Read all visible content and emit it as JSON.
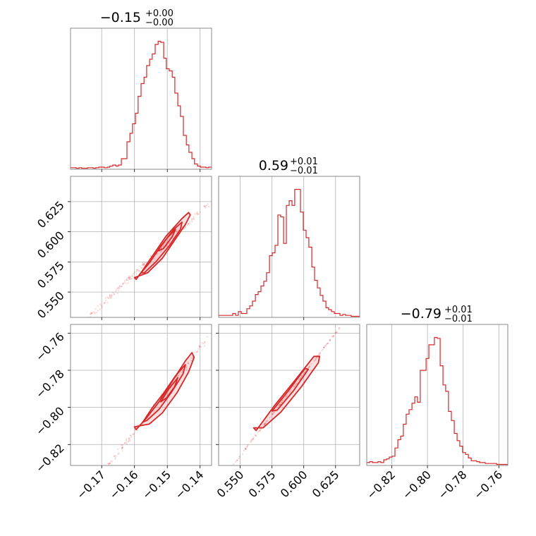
{
  "chart_data": {
    "type": "corner",
    "color": "#d62728",
    "grid": true,
    "parameters": [
      {
        "title": {
          "median": "−0.15",
          "plus": "+0.00",
          "minus": "−0.00"
        },
        "range": [
          -0.1795,
          -0.1365
        ],
        "ticks": [
          -0.17,
          -0.16,
          -0.15,
          -0.14
        ],
        "tick_labels": [
          "−0.17",
          "−0.16",
          "−0.15",
          "−0.14"
        ],
        "hist_x": [
          -0.1795,
          -0.1786,
          -0.1778,
          -0.1769,
          -0.1761,
          -0.1752,
          -0.1743,
          -0.1735,
          -0.1726,
          -0.1718,
          -0.1709,
          -0.17,
          -0.1692,
          -0.1683,
          -0.1675,
          -0.1666,
          -0.1657,
          -0.1649,
          -0.164,
          -0.1632,
          -0.1623,
          -0.1614,
          -0.1606,
          -0.1597,
          -0.1589,
          -0.158,
          -0.1571,
          -0.1563,
          -0.1554,
          -0.1546,
          -0.1537,
          -0.1528,
          -0.152,
          -0.1511,
          -0.1503,
          -0.1494,
          -0.1485,
          -0.1477,
          -0.1468,
          -0.146,
          -0.1451,
          -0.1442,
          -0.1434,
          -0.1425,
          -0.1417,
          -0.1408,
          -0.1399,
          -0.1391,
          -0.1382,
          -0.1374,
          -0.1365
        ],
        "hist_counts": [
          0.5,
          0.5,
          0,
          0.5,
          0,
          0,
          0.5,
          0.5,
          0,
          0.5,
          1,
          1,
          0.5,
          1,
          2,
          3,
          2,
          3,
          9,
          9,
          25,
          33,
          42,
          52,
          68,
          80,
          86,
          97,
          103,
          108,
          117,
          120,
          119,
          104,
          94,
          92,
          86,
          71,
          59,
          49,
          31,
          22,
          15,
          9,
          4,
          2,
          1,
          1,
          0.5,
          1,
          1
        ]
      },
      {
        "title": {
          "median": "0.59",
          "plus": "+0.01",
          "minus": "−0.01"
        },
        "range": [
          0.533,
          0.644
        ],
        "ticks": [
          0.55,
          0.575,
          0.6,
          0.625
        ],
        "tick_labels": [
          "0.550",
          "0.575",
          "0.600",
          "0.625"
        ],
        "hist_x": [
          0.533,
          0.5352,
          0.5374,
          0.5397,
          0.5419,
          0.5441,
          0.5463,
          0.5485,
          0.5508,
          0.553,
          0.5552,
          0.5574,
          0.5596,
          0.5619,
          0.5641,
          0.5663,
          0.5685,
          0.5707,
          0.573,
          0.5752,
          0.5774,
          0.5796,
          0.5818,
          0.5841,
          0.5863,
          0.5885,
          0.5907,
          0.5929,
          0.5952,
          0.5974,
          0.5996,
          0.6018,
          0.604,
          0.6063,
          0.6085,
          0.6107,
          0.6129,
          0.6151,
          0.6174,
          0.6196,
          0.6218,
          0.624,
          0.6262,
          0.6285,
          0.6307,
          0.6329,
          0.6351,
          0.6373,
          0.6396,
          0.6418,
          0.644
        ],
        "hist_counts": [
          1,
          1,
          1,
          1,
          1,
          3,
          1,
          5,
          3,
          3,
          8,
          11,
          16,
          23,
          26,
          32,
          37,
          46,
          64,
          67,
          75,
          107,
          105,
          77,
          117,
          122,
          117,
          134,
          134,
          110,
          91,
          83,
          73,
          52,
          38,
          30,
          22,
          16,
          9,
          7,
          5,
          3,
          3,
          1,
          2,
          1,
          1,
          0,
          0,
          0,
          0
        ]
      },
      {
        "title": {
          "median": "−0.79",
          "plus": "+0.01",
          "minus": "−0.01"
        },
        "range": [
          -0.834,
          -0.755
        ],
        "ticks": [
          -0.82,
          -0.8,
          -0.78,
          -0.76
        ],
        "tick_labels": [
          "−0.82",
          "−0.80",
          "−0.78",
          "−0.76"
        ],
        "hist_x": [
          -0.834,
          -0.8324,
          -0.8308,
          -0.8293,
          -0.8277,
          -0.8261,
          -0.8245,
          -0.8229,
          -0.8214,
          -0.8198,
          -0.8182,
          -0.8166,
          -0.815,
          -0.8135,
          -0.8119,
          -0.8103,
          -0.8087,
          -0.8071,
          -0.8056,
          -0.804,
          -0.8024,
          -0.8008,
          -0.7992,
          -0.7977,
          -0.7961,
          -0.7945,
          -0.7929,
          -0.7913,
          -0.7898,
          -0.7882,
          -0.7866,
          -0.785,
          -0.7834,
          -0.7819,
          -0.7803,
          -0.7787,
          -0.7771,
          -0.7755,
          -0.774,
          -0.7724,
          -0.7708,
          -0.7692,
          -0.7676,
          -0.7661,
          -0.7645,
          -0.7629,
          -0.7613,
          -0.7597,
          -0.7582,
          -0.7566,
          -0.755
        ],
        "hist_counts": [
          2,
          3,
          2,
          2,
          3,
          2,
          5,
          6,
          8,
          9,
          18,
          27,
          31,
          44,
          55,
          60,
          67,
          74,
          68,
          103,
          103,
          116,
          131,
          131,
          139,
          138,
          108,
          87,
          80,
          58,
          48,
          34,
          26,
          20,
          13,
          11,
          7,
          4,
          4,
          3,
          2,
          2,
          1,
          1,
          1,
          1,
          0,
          0,
          0,
          0,
          0
        ]
      }
    ],
    "scatter_pairs": [
      {
        "row": 1,
        "col": 0,
        "x_param": 0,
        "y_param": 1,
        "ylim": [
          0.529,
          0.646
        ],
        "y_ticks": [
          0.55,
          0.575,
          0.6,
          0.625
        ],
        "y_tick_labels": [
          "0.550",
          "0.575",
          "0.600",
          "0.625"
        ]
      },
      {
        "row": 2,
        "col": 0,
        "x_param": 0,
        "y_param": 2,
        "ylim": [
          -0.8313,
          -0.7553
        ],
        "y_ticks": [
          -0.82,
          -0.8,
          -0.78,
          -0.76
        ],
        "y_tick_labels": [
          "−0.82",
          "−0.80",
          "−0.78",
          "−0.76"
        ]
      },
      {
        "row": 2,
        "col": 1,
        "x_param": 1,
        "y_param": 2,
        "ylim": [
          -0.8313,
          -0.7553
        ],
        "y_ticks": [
          -0.82,
          -0.8,
          -0.78,
          -0.76
        ],
        "y_tick_labels": [
          "−0.82",
          "−0.80",
          "−0.78",
          "−0.76"
        ]
      }
    ],
    "relations": {
      "p1_from_p0": {
        "slope": 2.56,
        "intercept": 0.9748
      },
      "p2_from_p0": {
        "slope": 2.26,
        "intercept": -0.4515
      },
      "p2_from_p1": {
        "slope": 0.88,
        "intercept": -1.31
      }
    },
    "contours": [
      {
        "name": "p0_p1_outer",
        "poly": [
          [
            -0.16,
            0.562
          ],
          [
            -0.1595,
            0.5605
          ],
          [
            -0.1575,
            0.568
          ],
          [
            -0.1545,
            0.58
          ],
          [
            -0.1505,
            0.596
          ],
          [
            -0.1455,
            0.611
          ],
          [
            -0.1435,
            0.616
          ],
          [
            -0.143,
            0.614
          ],
          [
            -0.1445,
            0.606
          ],
          [
            -0.1475,
            0.594
          ],
          [
            -0.1515,
            0.578
          ],
          [
            -0.156,
            0.566
          ]
        ]
      },
      {
        "name": "p0_p1_mid",
        "poly": [
          [
            -0.158,
            0.566
          ],
          [
            -0.1555,
            0.574
          ],
          [
            -0.152,
            0.588
          ],
          [
            -0.148,
            0.602
          ],
          [
            -0.1455,
            0.608
          ],
          [
            -0.146,
            0.602
          ],
          [
            -0.1495,
            0.588
          ],
          [
            -0.1535,
            0.575
          ],
          [
            -0.157,
            0.566
          ]
        ]
      },
      {
        "name": "p0_p1_inner",
        "poly": [
          [
            -0.153,
            0.584
          ],
          [
            -0.15,
            0.595
          ],
          [
            -0.1475,
            0.602
          ],
          [
            -0.1485,
            0.596
          ],
          [
            -0.1512,
            0.586
          ]
        ]
      },
      {
        "name": "p0_p2_outer",
        "poly": [
          [
            -0.16,
            -0.8105
          ],
          [
            -0.1595,
            -0.812
          ],
          [
            -0.1565,
            -0.806
          ],
          [
            -0.1525,
            -0.797
          ],
          [
            -0.1485,
            -0.786
          ],
          [
            -0.1445,
            -0.775
          ],
          [
            -0.1425,
            -0.7705
          ],
          [
            -0.1418,
            -0.773
          ],
          [
            -0.1435,
            -0.781
          ],
          [
            -0.147,
            -0.792
          ],
          [
            -0.1515,
            -0.803
          ],
          [
            -0.1555,
            -0.809
          ]
        ]
      },
      {
        "name": "p0_p2_mid",
        "poly": [
          [
            -0.1575,
            -0.808
          ],
          [
            -0.1545,
            -0.8
          ],
          [
            -0.151,
            -0.792
          ],
          [
            -0.1475,
            -0.783
          ],
          [
            -0.1445,
            -0.777
          ],
          [
            -0.1452,
            -0.782
          ],
          [
            -0.1488,
            -0.792
          ],
          [
            -0.1525,
            -0.801
          ],
          [
            -0.1562,
            -0.807
          ]
        ]
      },
      {
        "name": "p0_p2_inner",
        "poly": [
          [
            -0.152,
            -0.797
          ],
          [
            -0.1495,
            -0.79
          ],
          [
            -0.1468,
            -0.784
          ],
          [
            -0.1478,
            -0.789
          ],
          [
            -0.1503,
            -0.795
          ]
        ]
      },
      {
        "name": "p1_p2_outer",
        "poly": [
          [
            0.5605,
            -0.811
          ],
          [
            0.5625,
            -0.8125
          ],
          [
            0.577,
            -0.799
          ],
          [
            0.593,
            -0.7855
          ],
          [
            0.608,
            -0.7725
          ],
          [
            0.6125,
            -0.7725
          ],
          [
            0.6115,
            -0.776
          ],
          [
            0.598,
            -0.789
          ],
          [
            0.582,
            -0.8025
          ],
          [
            0.568,
            -0.811
          ]
        ]
      },
      {
        "name": "p1_p2_inner",
        "poly": [
          [
            0.575,
            -0.802
          ],
          [
            0.588,
            -0.791
          ],
          [
            0.601,
            -0.779
          ],
          [
            0.6035,
            -0.7795
          ],
          [
            0.592,
            -0.791
          ],
          [
            0.579,
            -0.8015
          ]
        ]
      }
    ]
  }
}
